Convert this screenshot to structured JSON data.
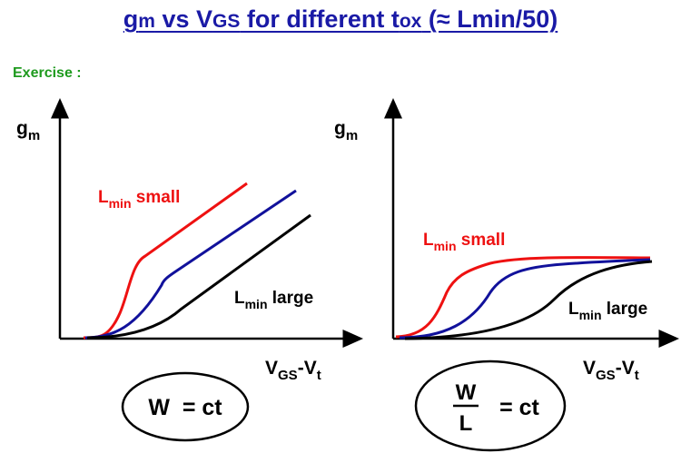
{
  "title": {
    "part1": "g",
    "part1_sub": "m",
    "part2": " vs V",
    "part2_sub": "GS",
    "part3": " for different t",
    "part3_sub": "ox",
    "part4": " (≈ Lmin/50)"
  },
  "exercise_label": "Exercise :",
  "left_plot": {
    "y_axis_label": "g",
    "y_axis_sub": "m",
    "x_axis_label_main": "V",
    "x_axis_label_sub": "GS",
    "x_axis_label_tail": "-V",
    "x_axis_label_tail_sub": "t",
    "curve_small_label": "L",
    "curve_small_sub": "min",
    "curve_small_tail": " small",
    "curve_large_label": "L",
    "curve_large_sub": "min",
    "curve_large_tail": " large",
    "condition": "W  = ct",
    "colors": {
      "small": "#ee1111",
      "mid": "#11119b",
      "large": "#000000"
    }
  },
  "right_plot": {
    "y_axis_label": "g",
    "y_axis_sub": "m",
    "x_axis_label_main": "V",
    "x_axis_label_sub": "GS",
    "x_axis_label_tail": "-V",
    "x_axis_label_tail_sub": "t",
    "curve_small_label": "L",
    "curve_small_sub": "min",
    "curve_small_tail": " small",
    "curve_large_label": "L",
    "curve_large_sub": "min",
    "curve_large_tail": " large",
    "condition_numerator": "W",
    "condition_denominator": "L",
    "condition_rhs": "= ct",
    "colors": {
      "small": "#ee1111",
      "mid": "#11119b",
      "large": "#000000"
    }
  }
}
